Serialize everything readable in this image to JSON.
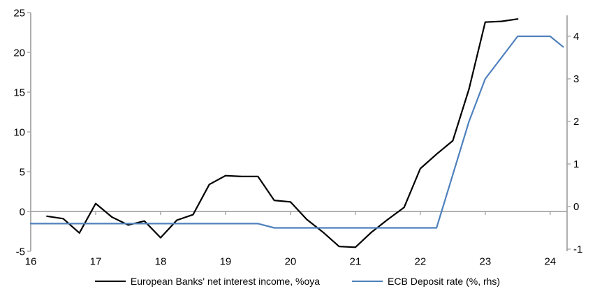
{
  "chart_data": {
    "type": "line",
    "title": "",
    "xlabel": "",
    "ylabel_left": "",
    "ylabel_right": "",
    "grid": "zero-line-only",
    "legend_position": "bottom-center",
    "colors": {
      "nii_line": "#000000",
      "deposit_rate_line": "#4f81bd",
      "axis_line": "#a6a6a6",
      "zero_line": "#a6a6a6",
      "tick_label": "#000000"
    },
    "x_axis": {
      "ticks": [
        16,
        17,
        18,
        19,
        20,
        21,
        22,
        23,
        24
      ],
      "labels": [
        "16",
        "17",
        "18",
        "19",
        "20",
        "21",
        "22",
        "23",
        "24"
      ],
      "range": [
        16,
        24.26
      ]
    },
    "left_axis": {
      "ticks": [
        -5,
        0,
        5,
        10,
        15,
        20,
        25
      ],
      "labels": [
        "-5",
        "0",
        "5",
        "10",
        "15",
        "20",
        "25"
      ],
      "range": [
        -5.0,
        25.18
      ]
    },
    "right_axis": {
      "ticks": [
        -1,
        0,
        1,
        2,
        3,
        4
      ],
      "labels": [
        "-1",
        "0",
        "1",
        "2",
        "3",
        "4"
      ],
      "range": [
        -1.05,
        4.59
      ]
    },
    "series": [
      {
        "name": "European Banks' net interest income, %oya",
        "axis": "left",
        "color_key": "nii_line",
        "x": [
          16.25,
          16.5,
          16.75,
          17.0,
          17.25,
          17.5,
          17.75,
          18.0,
          18.25,
          18.5,
          18.75,
          19.0,
          19.25,
          19.5,
          19.75,
          20.0,
          20.25,
          20.5,
          20.75,
          21.0,
          21.25,
          21.5,
          21.75,
          22.0,
          22.25,
          22.5,
          22.75,
          23.0,
          23.25,
          23.5
        ],
        "values": [
          -0.6,
          -0.9,
          -2.7,
          1.0,
          -0.7,
          -1.7,
          -1.2,
          -3.3,
          -1.1,
          -0.4,
          3.4,
          4.5,
          4.4,
          4.4,
          1.4,
          1.2,
          -1.0,
          -2.6,
          -4.4,
          -4.5,
          -2.6,
          -1.0,
          0.5,
          5.4,
          7.2,
          8.9,
          15.4,
          23.8,
          23.9,
          24.2
        ]
      },
      {
        "name": "ECB Deposit rate (%, rhs)",
        "axis": "right",
        "color_key": "deposit_rate_line",
        "x": [
          16.0,
          19.5,
          19.75,
          22.25,
          22.5,
          22.75,
          23.0,
          23.25,
          23.5,
          24.0,
          24.2
        ],
        "values": [
          -0.4,
          -0.4,
          -0.5,
          -0.5,
          0.75,
          2.0,
          3.0,
          3.5,
          4.0,
          4.0,
          3.75
        ]
      }
    ]
  }
}
